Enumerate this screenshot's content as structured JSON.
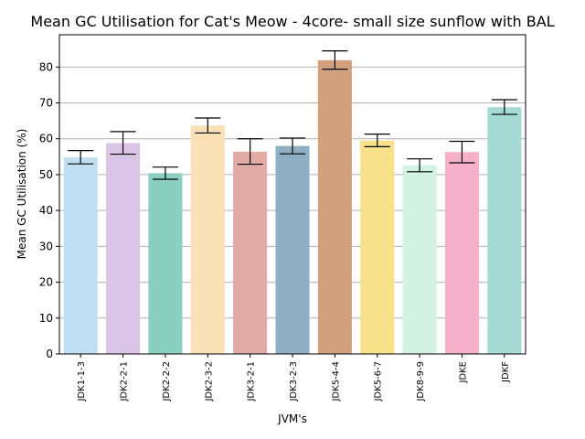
{
  "chart_data": {
    "type": "bar",
    "title": "Mean GC Utilisation for Cat's Meow - 4core- small size sunflow with BAL",
    "xlabel": "JVM's",
    "ylabel": "Mean GC Utilisation (%)",
    "ylim": [
      0,
      89
    ],
    "yticks": [
      0,
      10,
      20,
      30,
      40,
      50,
      60,
      70,
      80
    ],
    "grid": "horizontal",
    "categories": [
      "JDK1-1-3",
      "JDK2-2-1",
      "JDK2-2-2",
      "JDK2-3-2",
      "JDK3-2-1",
      "JDK3-2-3",
      "JDK5-4-4",
      "JDK5-6-7",
      "JDK8-9-9",
      "JDKE",
      "JDKF"
    ],
    "values": [
      54.8,
      58.8,
      50.4,
      63.7,
      56.4,
      58.0,
      81.9,
      59.5,
      52.6,
      56.3,
      68.8
    ],
    "error_low": [
      53.0,
      55.7,
      48.7,
      61.6,
      52.9,
      55.8,
      79.4,
      57.8,
      50.8,
      53.3,
      66.8
    ],
    "error_high": [
      56.7,
      62.0,
      52.1,
      65.8,
      60.0,
      60.2,
      84.5,
      61.3,
      54.4,
      59.3,
      70.9
    ],
    "colors": [
      "#c0dff2",
      "#dbc5e6",
      "#8bcfc0",
      "#fae1b6",
      "#e3aba6",
      "#8fafc4",
      "#d1a07d",
      "#f7e18b",
      "#d2f2e2",
      "#f7b0c9",
      "#a6dbd4"
    ]
  }
}
